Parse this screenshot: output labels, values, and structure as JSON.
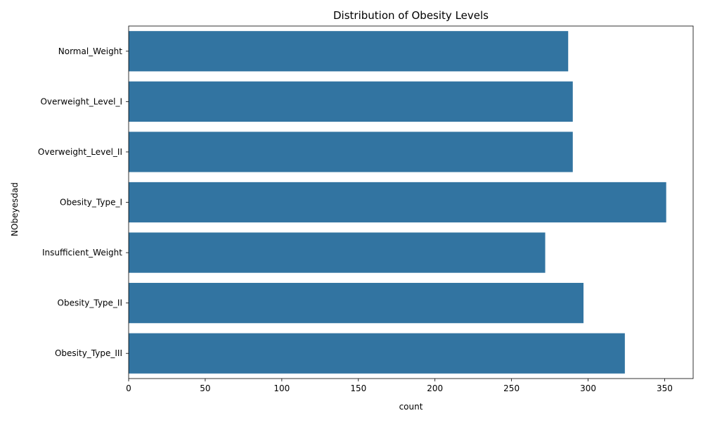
{
  "chart_data": {
    "type": "bar",
    "orientation": "horizontal",
    "title": "Distribution of Obesity Levels",
    "xlabel": "count",
    "ylabel": "NObeyesdad",
    "categories": [
      "Normal_Weight",
      "Overweight_Level_I",
      "Overweight_Level_II",
      "Obesity_Type_I",
      "Insufficient_Weight",
      "Obesity_Type_II",
      "Obesity_Type_III"
    ],
    "values": [
      287,
      290,
      290,
      351,
      272,
      297,
      324
    ],
    "xlim": [
      0,
      368.6
    ],
    "xticks": [
      0,
      50,
      100,
      150,
      200,
      250,
      300,
      350
    ],
    "grid": false,
    "legend": "none",
    "bar_color": "#3274a1"
  }
}
